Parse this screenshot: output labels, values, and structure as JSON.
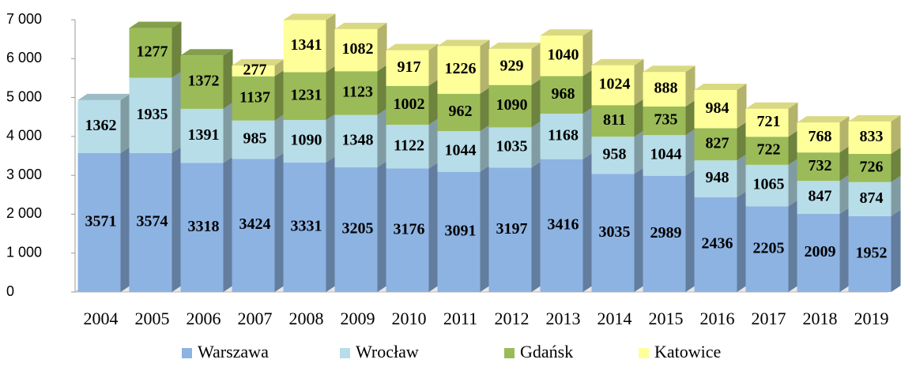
{
  "chart_data": {
    "type": "bar",
    "stacked": true,
    "categories": [
      "2004",
      "2005",
      "2006",
      "2007",
      "2008",
      "2009",
      "2010",
      "2011",
      "2012",
      "2013",
      "2014",
      "2015",
      "2016",
      "2017",
      "2018",
      "2019"
    ],
    "series": [
      {
        "name": "Warszawa",
        "color": "#8db3e2",
        "values": [
          3571,
          3574,
          3318,
          3424,
          3331,
          3205,
          3176,
          3091,
          3197,
          3416,
          3035,
          2989,
          2436,
          2205,
          2009,
          1952
        ]
      },
      {
        "name": "Wrocław",
        "color": "#b7dde8",
        "values": [
          1362,
          1935,
          1391,
          985,
          1090,
          1348,
          1122,
          1044,
          1035,
          1168,
          958,
          1044,
          948,
          1065,
          847,
          874
        ]
      },
      {
        "name": "Gdańsk",
        "color": "#9bbb59",
        "values": [
          null,
          1277,
          1372,
          1137,
          1231,
          1123,
          1002,
          962,
          1090,
          968,
          811,
          735,
          827,
          722,
          732,
          726
        ]
      },
      {
        "name": "Katowice",
        "color": "#ffff99",
        "values": [
          null,
          null,
          null,
          277,
          1341,
          1082,
          917,
          1226,
          929,
          1040,
          1024,
          888,
          984,
          721,
          768,
          833
        ]
      }
    ],
    "ylim": [
      0,
      7000
    ],
    "yticks": [
      0,
      {
        "value": 1000,
        "label": "1 000"
      },
      {
        "value": 2000,
        "label": "2 000"
      },
      {
        "value": 3000,
        "label": "3 000"
      },
      {
        "value": 4000,
        "label": "4 000"
      },
      {
        "value": 5000,
        "label": "5 000"
      },
      {
        "value": 6000,
        "label": "6 000"
      },
      {
        "value": 7000,
        "label": "7 000"
      }
    ],
    "legend": "bottom"
  }
}
